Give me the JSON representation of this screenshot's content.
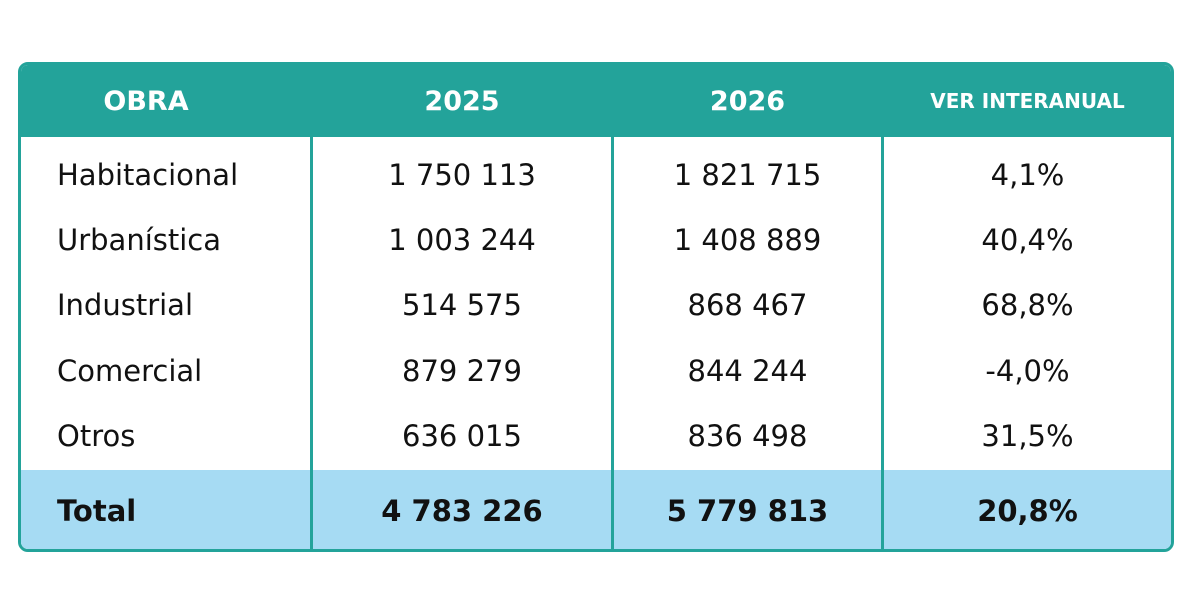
{
  "chart_data": {
    "type": "table",
    "columns": [
      "OBRA",
      "2025",
      "2026",
      "VER INTERANUAL"
    ],
    "rows": [
      [
        "Habitacional",
        "1 750 113",
        "1 821 715",
        "4,1%"
      ],
      [
        "Urbanística",
        "1 003 244",
        "1 408 889",
        "40,4%"
      ],
      [
        "Industrial",
        "514 575",
        "868 467",
        "68,8%"
      ],
      [
        "Comercial",
        "879 279",
        "844 244",
        "-4,0%"
      ],
      [
        "Otros",
        "636 015",
        "836 498",
        "31,5%"
      ]
    ],
    "total": [
      "Total",
      "4 783 226",
      "5 779 813",
      "20,8%"
    ]
  },
  "colors": {
    "header_bg": "#23a39a",
    "total_bg": "#a6dbf3",
    "border": "#23a39a"
  }
}
